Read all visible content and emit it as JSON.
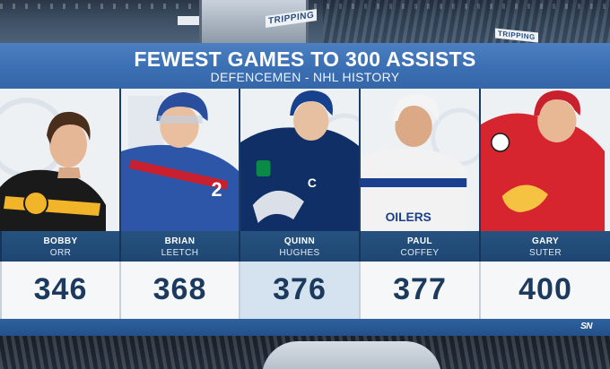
{
  "title": "FEWEST GAMES TO 300 ASSISTS",
  "subtitle": "DEFENCEMEN - NHL HISTORY",
  "arena_signs": [
    "TRIPPING",
    "TRIPPING"
  ],
  "players": [
    {
      "first": "BOBBY",
      "last": "ORR",
      "games": "346",
      "highlighted": false,
      "jersey_color": "#1a1a1a",
      "accent_color": "#f2b52a"
    },
    {
      "first": "BRIAN",
      "last": "LEETCH",
      "games": "368",
      "highlighted": false,
      "jersey_color": "#2e56a8",
      "accent_color": "#c8202f"
    },
    {
      "first": "QUINN",
      "last": "HUGHES",
      "games": "376",
      "highlighted": true,
      "jersey_color": "#0f2f66",
      "accent_color": "#0a8a47"
    },
    {
      "first": "PAUL",
      "last": "COFFEY",
      "games": "377",
      "highlighted": false,
      "jersey_color": "#f2f2f2",
      "accent_color": "#1b3f8f"
    },
    {
      "first": "GARY",
      "last": "SUTER",
      "games": "400",
      "highlighted": false,
      "jersey_color": "#d6252f",
      "accent_color": "#f5c242"
    }
  ],
  "logo": "SN",
  "colors": {
    "title_bar": "#3b6fb3",
    "name_box": "#23507f",
    "value_text": "#1c3a5e",
    "highlight_box": "#d5e3f1"
  }
}
